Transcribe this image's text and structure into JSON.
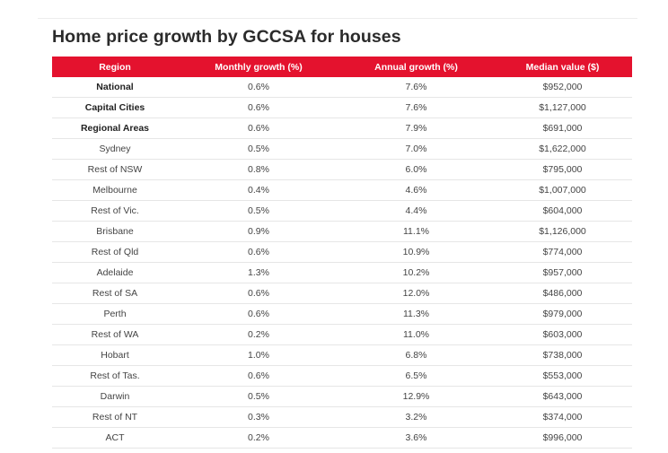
{
  "title": "Home price growth by GCCSA for houses",
  "colors": {
    "header_bg": "#e4122e",
    "header_text": "#ffffff"
  },
  "table": {
    "headers": [
      "Region",
      "Monthly growth (%)",
      "Annual growth (%)",
      "Median value ($)"
    ],
    "rows": [
      {
        "region": "National",
        "monthly": "0.6%",
        "annual": "7.6%",
        "median": "$952,000",
        "bold": true
      },
      {
        "region": "Capital Cities",
        "monthly": "0.6%",
        "annual": "7.6%",
        "median": "$1,127,000",
        "bold": true
      },
      {
        "region": "Regional Areas",
        "monthly": "0.6%",
        "annual": "7.9%",
        "median": "$691,000",
        "bold": true
      },
      {
        "region": "Sydney",
        "monthly": "0.5%",
        "annual": "7.0%",
        "median": "$1,622,000",
        "bold": false
      },
      {
        "region": "Rest of NSW",
        "monthly": "0.8%",
        "annual": "6.0%",
        "median": "$795,000",
        "bold": false
      },
      {
        "region": "Melbourne",
        "monthly": "0.4%",
        "annual": "4.6%",
        "median": "$1,007,000",
        "bold": false
      },
      {
        "region": "Rest of Vic.",
        "monthly": "0.5%",
        "annual": "4.4%",
        "median": "$604,000",
        "bold": false
      },
      {
        "region": "Brisbane",
        "monthly": "0.9%",
        "annual": "11.1%",
        "median": "$1,126,000",
        "bold": false
      },
      {
        "region": "Rest of Qld",
        "monthly": "0.6%",
        "annual": "10.9%",
        "median": "$774,000",
        "bold": false
      },
      {
        "region": "Adelaide",
        "monthly": "1.3%",
        "annual": "10.2%",
        "median": "$957,000",
        "bold": false
      },
      {
        "region": "Rest of SA",
        "monthly": "0.6%",
        "annual": "12.0%",
        "median": "$486,000",
        "bold": false
      },
      {
        "region": "Perth",
        "monthly": "0.6%",
        "annual": "11.3%",
        "median": "$979,000",
        "bold": false
      },
      {
        "region": "Rest of WA",
        "monthly": "0.2%",
        "annual": "11.0%",
        "median": "$603,000",
        "bold": false
      },
      {
        "region": "Hobart",
        "monthly": "1.0%",
        "annual": "6.8%",
        "median": "$738,000",
        "bold": false
      },
      {
        "region": "Rest of Tas.",
        "monthly": "0.6%",
        "annual": "6.5%",
        "median": "$553,000",
        "bold": false
      },
      {
        "region": "Darwin",
        "monthly": "0.5%",
        "annual": "12.9%",
        "median": "$643,000",
        "bold": false
      },
      {
        "region": "Rest of NT",
        "monthly": "0.3%",
        "annual": "3.2%",
        "median": "$374,000",
        "bold": false
      },
      {
        "region": "ACT",
        "monthly": "0.2%",
        "annual": "3.6%",
        "median": "$996,000",
        "bold": false
      }
    ]
  }
}
